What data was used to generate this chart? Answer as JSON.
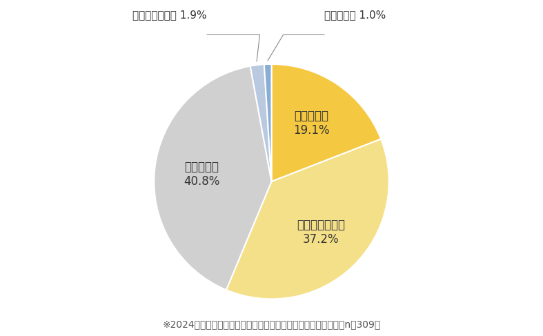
{
  "labels": [
    "前倒しする",
    "やや前倒しする",
    "変更しない",
    "やや後倒しする",
    "後倒しする"
  ],
  "values": [
    19.1,
    37.2,
    40.8,
    1.9,
    1.0
  ],
  "colors": [
    "#F5C842",
    "#F5E08A",
    "#D0D0D0",
    "#B8C9E0",
    "#8AADD4"
  ],
  "startangle": 90,
  "note": "※2024年卒採用でインターンシップを実施していた企業が回答（n＝309）",
  "background_color": "#FFFFFF",
  "label_fontsize": 12,
  "note_fontsize": 10,
  "wedge_edge_color": "white",
  "wedge_linewidth": 1.5
}
